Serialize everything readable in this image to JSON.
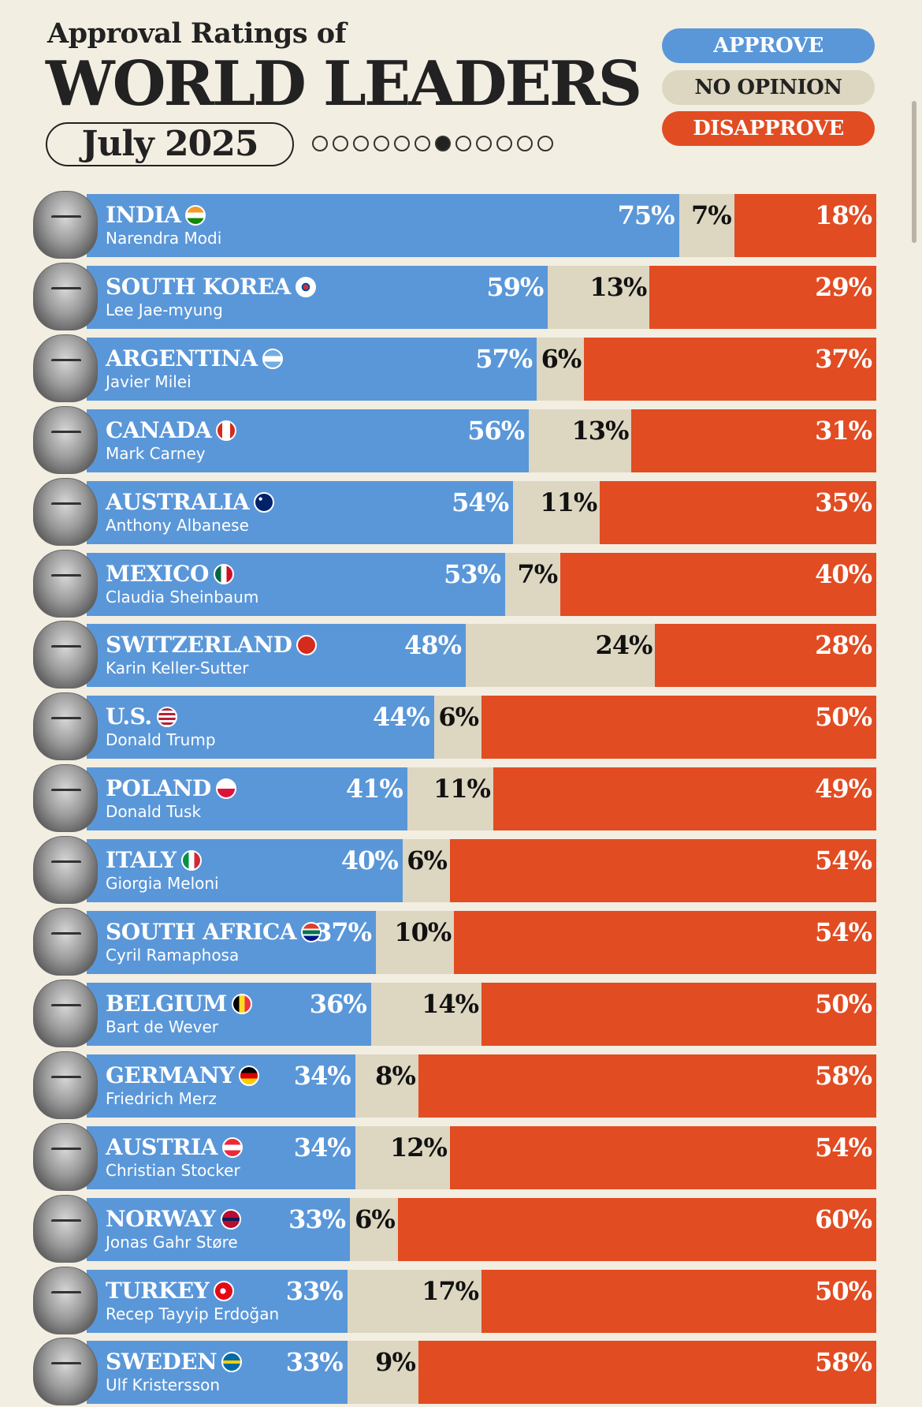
{
  "header": {
    "subtitle": "Approval Ratings of",
    "title": "WORLD LEADERS",
    "date": "July 2025",
    "pager": {
      "total": 12,
      "active_index": 6
    }
  },
  "legend": {
    "approve": "APPROVE",
    "no_opinion": "NO OPINION",
    "disapprove": "DISAPPROVE"
  },
  "colors": {
    "approve": "#5a97d9",
    "no_opinion": "#ddd6c0",
    "disapprove": "#e24c22",
    "background": "#f3eee2"
  },
  "chart_data": {
    "type": "bar",
    "orientation": "horizontal-stacked",
    "title": "WORLD LEADERS",
    "subtitle": "Approval Ratings of",
    "series_names": [
      "APPROVE",
      "NO OPINION",
      "DISAPPROVE"
    ],
    "rows": [
      {
        "country": "INDIA",
        "leader": "Narendra Modi",
        "approve": 75,
        "no_opinion": 7,
        "disapprove": 18,
        "flag": "india-flag-icon"
      },
      {
        "country": "SOUTH KOREA",
        "leader": "Lee Jae-myung",
        "approve": 59,
        "no_opinion": 13,
        "disapprove": 29,
        "flag": "south-korea-flag-icon"
      },
      {
        "country": "ARGENTINA",
        "leader": "Javier Milei",
        "approve": 57,
        "no_opinion": 6,
        "disapprove": 37,
        "flag": "argentina-flag-icon"
      },
      {
        "country": "CANADA",
        "leader": "Mark Carney",
        "approve": 56,
        "no_opinion": 13,
        "disapprove": 31,
        "flag": "canada-flag-icon"
      },
      {
        "country": "AUSTRALIA",
        "leader": "Anthony Albanese",
        "approve": 54,
        "no_opinion": 11,
        "disapprove": 35,
        "flag": "australia-flag-icon"
      },
      {
        "country": "MEXICO",
        "leader": "Claudia Sheinbaum",
        "approve": 53,
        "no_opinion": 7,
        "disapprove": 40,
        "flag": "mexico-flag-icon"
      },
      {
        "country": "SWITZERLAND",
        "leader": "Karin Keller-Sutter",
        "approve": 48,
        "no_opinion": 24,
        "disapprove": 28,
        "flag": "switzerland-flag-icon"
      },
      {
        "country": "U.S.",
        "leader": "Donald Trump",
        "approve": 44,
        "no_opinion": 6,
        "disapprove": 50,
        "flag": "us-flag-icon"
      },
      {
        "country": "POLAND",
        "leader": "Donald Tusk",
        "approve": 41,
        "no_opinion": 11,
        "disapprove": 49,
        "flag": "poland-flag-icon"
      },
      {
        "country": "ITALY",
        "leader": "Giorgia Meloni",
        "approve": 40,
        "no_opinion": 6,
        "disapprove": 54,
        "flag": "italy-flag-icon"
      },
      {
        "country": "SOUTH AFRICA",
        "leader": "Cyril Ramaphosa",
        "approve": 37,
        "no_opinion": 10,
        "disapprove": 54,
        "flag": "south-africa-flag-icon"
      },
      {
        "country": "BELGIUM",
        "leader": "Bart de Wever",
        "approve": 36,
        "no_opinion": 14,
        "disapprove": 50,
        "flag": "belgium-flag-icon"
      },
      {
        "country": "GERMANY",
        "leader": "Friedrich Merz",
        "approve": 34,
        "no_opinion": 8,
        "disapprove": 58,
        "flag": "germany-flag-icon"
      },
      {
        "country": "AUSTRIA",
        "leader": "Christian Stocker",
        "approve": 34,
        "no_opinion": 12,
        "disapprove": 54,
        "flag": "austria-flag-icon"
      },
      {
        "country": "NORWAY",
        "leader": "Jonas Gahr Støre",
        "approve": 33,
        "no_opinion": 6,
        "disapprove": 60,
        "flag": "norway-flag-icon"
      },
      {
        "country": "TURKEY",
        "leader": "Recep Tayyip Erdoğan",
        "approve": 33,
        "no_opinion": 17,
        "disapprove": 50,
        "flag": "turkey-flag-icon"
      },
      {
        "country": "SWEDEN",
        "leader": "Ulf Kristersson",
        "approve": 33,
        "no_opinion": 9,
        "disapprove": 58,
        "flag": "sweden-flag-icon"
      }
    ],
    "value_suffix": "%"
  }
}
